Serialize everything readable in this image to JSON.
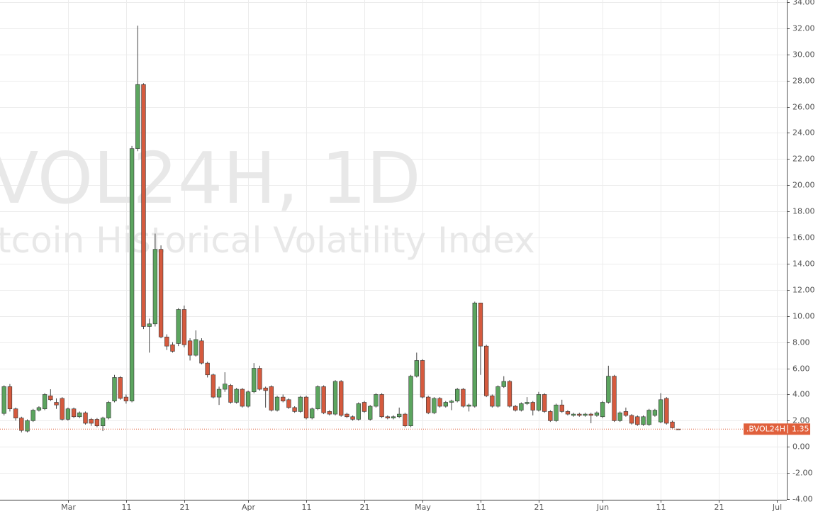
{
  "chart_data": {
    "type": "candlestick",
    "watermark": {
      "symbol": "VOL24H, 1D",
      "description": "tcoin Historical Volatility Index"
    },
    "x": [
      -11,
      -10,
      -9,
      -8,
      -7,
      -6,
      -5,
      -4,
      -3,
      -2,
      -1,
      0,
      1,
      2,
      3,
      4,
      5,
      6,
      7,
      8,
      9,
      10,
      11,
      12,
      13,
      14,
      15,
      16,
      17,
      18,
      19,
      20,
      21,
      22,
      23,
      24,
      25,
      26,
      27,
      28,
      29,
      30,
      31,
      32,
      33,
      34,
      35,
      36,
      37,
      38,
      39,
      40,
      41,
      42,
      43,
      44,
      45,
      46,
      47,
      48,
      49,
      50,
      51,
      52,
      53,
      54,
      55,
      56,
      57,
      58,
      59,
      60,
      61,
      62,
      63,
      64,
      65,
      66,
      67,
      68,
      69,
      70,
      71,
      72,
      73,
      74,
      75,
      76,
      77,
      78,
      79,
      80,
      81,
      82,
      83,
      84,
      85,
      86,
      87,
      88,
      89,
      90,
      91,
      92,
      93,
      94,
      95,
      96,
      97,
      98,
      99,
      100,
      101,
      102,
      103,
      104,
      105
    ],
    "series": [
      {
        "name": ".BVOL24H",
        "up_color": "#5ca55f",
        "down_color": "#d55a3e",
        "open": [
          2.55,
          4.6,
          2.9,
          2.2,
          1.2,
          2.0,
          2.8,
          2.9,
          3.9,
          3.4,
          3.7,
          2.1,
          2.9,
          2.3,
          2.6,
          2.1,
          2.1,
          1.6,
          2.2,
          3.5,
          5.3,
          3.8,
          3.5,
          22.8,
          27.7,
          9.2,
          9.4,
          15.1,
          8.4,
          7.8,
          7.9,
          10.5,
          8.1,
          7.0,
          8.1,
          6.4,
          5.5,
          3.8,
          4.4,
          4.7,
          3.4,
          4.4,
          3.1,
          4.2,
          6.0,
          4.5,
          4.6,
          2.8,
          3.8,
          3.6,
          3.0,
          2.7,
          3.8,
          2.2,
          2.9,
          4.6,
          2.7,
          2.5,
          5.0,
          2.5,
          2.3,
          2.1,
          3.4,
          2.1,
          3.1,
          4.0,
          2.3,
          2.2,
          2.3,
          2.5,
          1.6,
          5.4,
          6.6,
          3.8,
          2.6,
          3.7,
          3.1,
          3.4,
          3.5,
          4.4,
          3.1,
          3.1,
          11.0,
          7.7,
          3.9,
          3.1,
          4.6,
          5.0,
          3.1,
          2.8,
          3.3,
          3.4,
          2.8,
          4.0,
          2.7,
          2.0,
          3.2,
          2.7,
          2.4,
          2.5,
          2.4,
          2.5,
          2.4,
          2.3,
          3.4,
          5.4,
          2.0,
          2.7,
          2.4,
          2.3,
          1.7,
          1.7,
          2.4,
          1.9,
          3.7,
          1.9,
          1.36
        ],
        "high": [
          4.7,
          4.8,
          3.0,
          2.3,
          2.1,
          2.9,
          3.1,
          4.1,
          4.4,
          3.7,
          3.8,
          3.0,
          3.0,
          2.7,
          2.7,
          2.2,
          2.2,
          2.3,
          3.5,
          5.5,
          5.4,
          4.0,
          23.0,
          32.2,
          27.8,
          9.8,
          16.3,
          15.4,
          8.6,
          8.0,
          10.6,
          10.8,
          8.3,
          8.9,
          8.3,
          6.5,
          5.6,
          4.6,
          5.7,
          4.8,
          4.5,
          4.5,
          4.3,
          6.4,
          6.2,
          4.6,
          4.7,
          3.9,
          4.0,
          3.7,
          3.1,
          3.9,
          3.9,
          3.0,
          4.7,
          4.7,
          2.8,
          5.1,
          5.1,
          2.6,
          2.4,
          3.4,
          3.5,
          3.2,
          4.1,
          4.1,
          2.4,
          2.4,
          3.0,
          2.6,
          5.5,
          7.2,
          6.7,
          3.9,
          3.8,
          3.8,
          3.5,
          3.6,
          4.5,
          4.5,
          3.3,
          11.1,
          11.0,
          7.8,
          4.0,
          4.7,
          5.4,
          5.1,
          3.2,
          3.4,
          3.8,
          3.5,
          4.2,
          4.1,
          2.8,
          3.3,
          3.6,
          2.8,
          2.6,
          2.6,
          2.6,
          2.6,
          2.7,
          3.5,
          6.2,
          5.5,
          2.7,
          3.0,
          2.5,
          2.4,
          2.4,
          2.9,
          2.9,
          4.1,
          3.8,
          2.0,
          1.37
        ],
        "low": [
          2.4,
          2.7,
          2.0,
          1.1,
          1.1,
          1.9,
          2.7,
          2.8,
          3.5,
          2.9,
          2.0,
          2.0,
          2.2,
          2.2,
          1.7,
          1.6,
          1.5,
          1.2,
          2.1,
          3.4,
          3.6,
          3.3,
          3.4,
          22.6,
          9.0,
          7.2,
          9.2,
          8.3,
          7.4,
          7.2,
          7.7,
          7.6,
          6.6,
          6.9,
          6.3,
          5.3,
          3.7,
          3.2,
          4.2,
          3.3,
          3.3,
          3.0,
          3.0,
          4.1,
          4.3,
          3.0,
          2.7,
          2.7,
          3.4,
          2.9,
          2.6,
          2.6,
          2.1,
          2.1,
          2.8,
          2.5,
          2.4,
          2.4,
          2.3,
          2.2,
          2.0,
          2.0,
          2.6,
          2.0,
          3.0,
          2.2,
          2.1,
          2.1,
          2.2,
          1.5,
          1.5,
          5.3,
          3.7,
          2.5,
          2.5,
          3.0,
          3.0,
          2.8,
          3.4,
          3.0,
          2.7,
          3.0,
          5.5,
          3.8,
          3.0,
          3.0,
          4.5,
          3.0,
          2.7,
          2.7,
          3.2,
          2.4,
          2.7,
          2.6,
          1.9,
          1.9,
          2.6,
          2.4,
          2.3,
          2.3,
          2.3,
          1.8,
          2.3,
          2.2,
          3.3,
          1.9,
          1.9,
          2.3,
          1.7,
          1.6,
          1.6,
          1.6,
          2.3,
          1.8,
          1.7,
          1.4,
          1.33
        ],
        "close": [
          4.6,
          2.9,
          2.2,
          1.25,
          2.0,
          2.8,
          3.0,
          4.0,
          3.6,
          3.2,
          2.1,
          2.9,
          2.3,
          2.6,
          1.8,
          1.8,
          1.6,
          2.2,
          3.4,
          5.3,
          3.7,
          3.5,
          22.8,
          27.7,
          9.2,
          9.4,
          15.1,
          8.4,
          7.7,
          7.3,
          10.5,
          7.8,
          7.0,
          8.2,
          6.4,
          5.5,
          3.8,
          4.4,
          4.8,
          3.4,
          4.4,
          3.1,
          4.2,
          6.0,
          4.4,
          4.3,
          2.8,
          3.8,
          3.5,
          3.0,
          2.7,
          3.8,
          2.2,
          2.9,
          4.6,
          2.6,
          2.5,
          5.0,
          2.4,
          2.3,
          2.1,
          3.3,
          2.7,
          3.1,
          4.0,
          2.3,
          2.2,
          2.3,
          2.5,
          1.6,
          5.4,
          6.6,
          3.8,
          2.6,
          3.7,
          3.1,
          3.4,
          3.5,
          4.4,
          3.1,
          3.2,
          11.0,
          7.7,
          3.9,
          3.1,
          4.6,
          5.0,
          3.1,
          2.8,
          3.3,
          3.4,
          2.8,
          4.0,
          2.7,
          2.0,
          3.2,
          2.7,
          2.5,
          2.5,
          2.4,
          2.5,
          2.4,
          2.6,
          3.4,
          5.4,
          2.0,
          2.6,
          2.4,
          1.8,
          1.7,
          2.3,
          2.8,
          2.8,
          3.6,
          1.8,
          1.45,
          1.35
        ]
      }
    ],
    "last_color": "#e0603c",
    "xlim": [
      -11.7,
      123.7
    ],
    "xticks": [
      {
        "value": 0,
        "label": "Mar"
      },
      {
        "value": 10,
        "label": "11"
      },
      {
        "value": 20,
        "label": "21"
      },
      {
        "value": 31,
        "label": "Apr"
      },
      {
        "value": 41,
        "label": "11"
      },
      {
        "value": 51,
        "label": "21"
      },
      {
        "value": 61,
        "label": "May"
      },
      {
        "value": 71,
        "label": "11"
      },
      {
        "value": 81,
        "label": "21"
      },
      {
        "value": 92,
        "label": "Jun"
      },
      {
        "value": 102,
        "label": "11"
      },
      {
        "value": 112,
        "label": "21"
      },
      {
        "value": 122,
        "label": "Jul"
      }
    ],
    "ylim": [
      -4,
      34
    ],
    "yticks": [
      {
        "value": -4,
        "label": "-4.00"
      },
      {
        "value": -2,
        "label": "-2.00"
      },
      {
        "value": 0,
        "label": "0.00"
      },
      {
        "value": 2,
        "label": "2.00"
      },
      {
        "value": 4,
        "label": "4.00"
      },
      {
        "value": 6,
        "label": "6.00"
      },
      {
        "value": 8,
        "label": "8.00"
      },
      {
        "value": 10,
        "label": "10.00"
      },
      {
        "value": 12,
        "label": "12.00"
      },
      {
        "value": 14,
        "label": "14.00"
      },
      {
        "value": 16,
        "label": "16.00"
      },
      {
        "value": 18,
        "label": "18.00"
      },
      {
        "value": 20,
        "label": "20.00"
      },
      {
        "value": 22,
        "label": "22.00"
      },
      {
        "value": 24,
        "label": "24.00"
      },
      {
        "value": 26,
        "label": "26.00"
      },
      {
        "value": 28,
        "label": "28.00"
      },
      {
        "value": 30,
        "label": "30.00"
      },
      {
        "value": 32,
        "label": "32.00"
      },
      {
        "value": 34,
        "label": "34.00"
      }
    ],
    "grid": true
  }
}
